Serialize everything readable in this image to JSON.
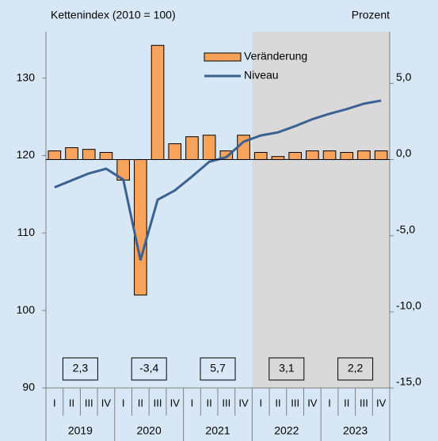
{
  "chart_data": {
    "type": "bar",
    "y_label": "Kettenindex (2010 = 100)",
    "y2_label": "Prozent",
    "categories": [
      "I",
      "II",
      "III",
      "IV",
      "I",
      "II",
      "III",
      "IV",
      "I",
      "II",
      "III",
      "IV",
      "I",
      "II",
      "III",
      "IV",
      "I",
      "II",
      "III",
      "IV"
    ],
    "years": [
      "2019",
      "2020",
      "2021",
      "2022",
      "2023"
    ],
    "series": [
      {
        "name": "Veränderung",
        "type": "bar",
        "axis": "y2",
        "color": "#f7a35c",
        "values": [
          0.57,
          0.78,
          0.67,
          0.47,
          -1.35,
          -8.9,
          7.5,
          1.04,
          1.5,
          1.6,
          0.57,
          1.6,
          0.47,
          0.2,
          0.47,
          0.57,
          0.57,
          0.47,
          0.57,
          0.57
        ]
      },
      {
        "name": "Niveau",
        "type": "line",
        "axis": "y",
        "color": "#3a6192",
        "values": [
          115.9,
          116.8,
          117.7,
          118.3,
          116.9,
          106.5,
          114.3,
          115.5,
          117.3,
          119.2,
          119.8,
          121.8,
          122.6,
          123.0,
          123.8,
          124.7,
          125.4,
          126.0,
          126.7,
          127.1
        ]
      }
    ],
    "annual": {
      "values": [
        2.3,
        -3.4,
        5.7,
        3.1,
        2.2
      ],
      "value_labels": [
        "2,3",
        "-3,4",
        "5,7",
        "3,1",
        "2,2"
      ]
    },
    "ylim": [
      90,
      136
    ],
    "yticks": [
      90,
      100,
      110,
      120,
      130
    ],
    "y2lim": [
      -15,
      8.4
    ],
    "y2ticks": [
      {
        "value": -15,
        "label": "-15,0"
      },
      {
        "value": -10,
        "label": "-10,0"
      },
      {
        "value": -5,
        "label": "-5,0"
      },
      {
        "value": 0,
        "label": "0,0"
      },
      {
        "value": 5,
        "label": "5,0"
      }
    ]
  }
}
